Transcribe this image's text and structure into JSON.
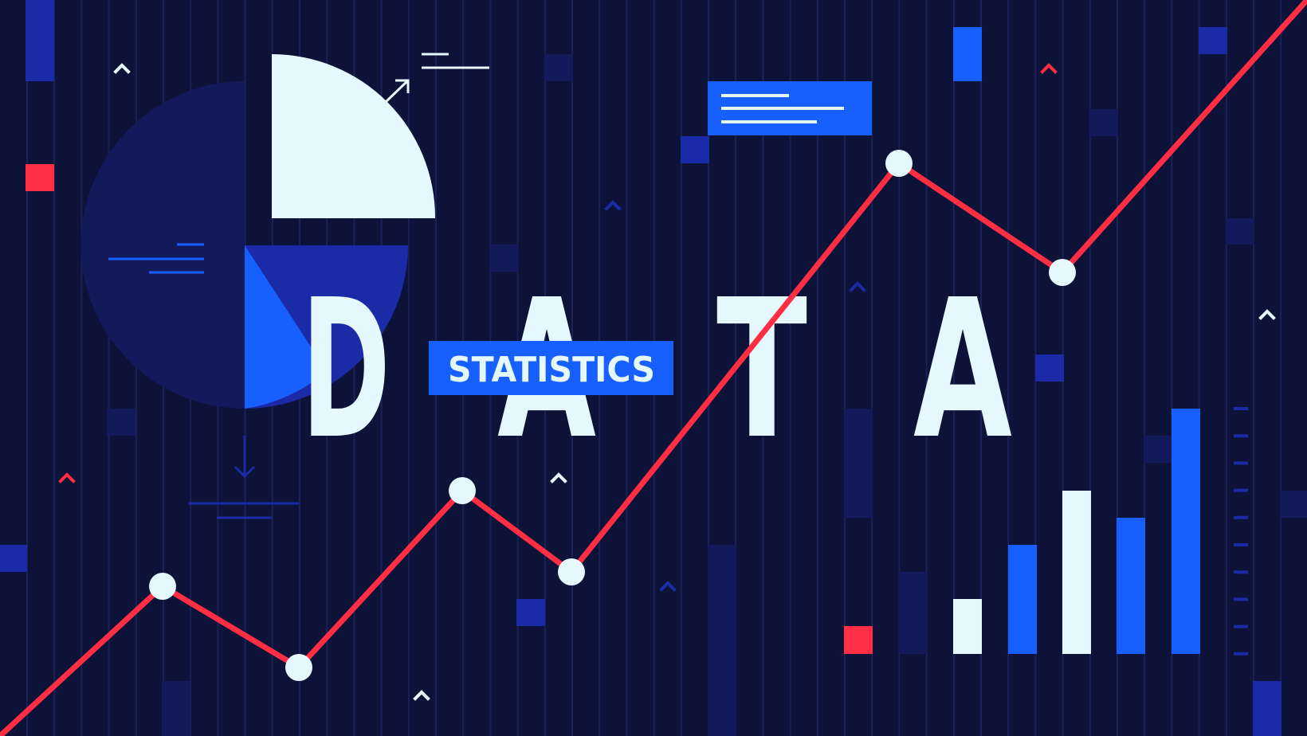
{
  "headline": {
    "letters": [
      "D",
      "A",
      "T",
      "A"
    ]
  },
  "label": {
    "text": "STATISTICS"
  },
  "colors": {
    "background": "#0d1238",
    "gridline": "#1a2157",
    "navy": "#131a5c",
    "royal": "#1b2aa6",
    "bright_blue": "#1760ff",
    "pale": "#e4f8fd",
    "red": "#ff2e42"
  }
}
